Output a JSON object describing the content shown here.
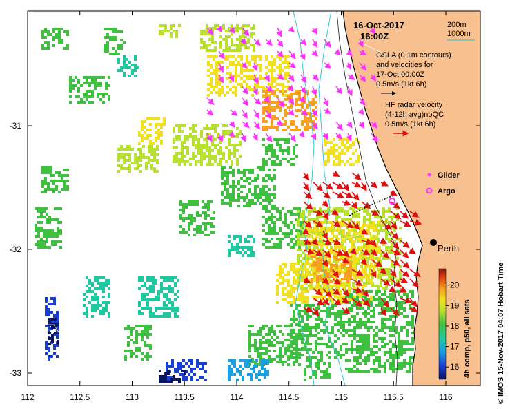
{
  "title": {
    "date": "16-Oct-2017",
    "time": "16:00Z"
  },
  "isobath_legend": {
    "items": [
      {
        "label": "200m",
        "color": "#1a1a1a"
      },
      {
        "label": "1000m",
        "color": "#35c9d8"
      }
    ]
  },
  "gsla_legend": {
    "lines": [
      "GSLA (0.1m contours)",
      "and velocities for",
      "17-Oct 00:00Z"
    ],
    "scale": "0.5m/s (1kt 6h)"
  },
  "hf_legend": {
    "lines": [
      "HF radar velocity",
      "(4-12h avg)noQC"
    ],
    "scale": "0.5m/s (1kt 6h)"
  },
  "markers": {
    "glider": "Glider",
    "argo": "Argo",
    "city": "Perth"
  },
  "x_axis": {
    "ticks": [
      "112",
      "112.5",
      "113",
      "113.5",
      "114",
      "114.5",
      "115",
      "115.5",
      "116"
    ]
  },
  "y_axis": {
    "ticks": [
      "-31",
      "-32",
      "-33"
    ]
  },
  "colorbar": {
    "label": "4h comp, p50, all sats",
    "ticks": [
      "16",
      "17",
      "18",
      "19",
      "20"
    ],
    "range": [
      15.4,
      20.8
    ]
  },
  "credit": "© IMOS 15-Nov-2017 04:07 Hobart Time",
  "colors": {
    "land": "#f8c08f",
    "hf_arrow": "#e01010",
    "gsla_arrow": "#ff33ff",
    "isobath_1000": "#35c9d8"
  }
}
